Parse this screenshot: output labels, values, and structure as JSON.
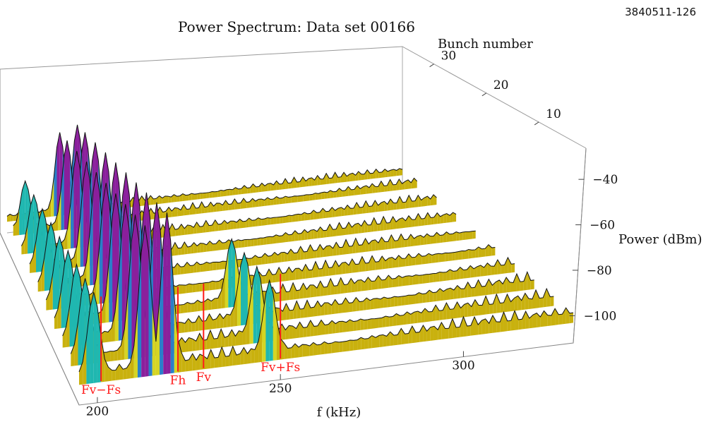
{
  "figure_id": "3840511-126",
  "chart_data": {
    "type": "surface",
    "title": "Power Spectrum: Data set 00166",
    "xlabel": "f (kHz)",
    "ylabel": "Bunch number",
    "zlabel": "Power (dBm)",
    "xlim": [
      195,
      330
    ],
    "ylim": [
      1,
      36
    ],
    "zlim": [
      -112,
      -28
    ],
    "x_ticks": [
      200,
      250,
      300
    ],
    "y_ticks": [
      10,
      20,
      30
    ],
    "z_ticks": [
      -40,
      -60,
      -80,
      -100
    ],
    "bunch_rows": [
      1,
      5,
      9,
      13,
      17,
      21,
      25,
      29,
      33,
      36
    ],
    "noise_floor_dBm": -100,
    "peaks": [
      {
        "f": 199,
        "bunch_from": 1,
        "bunch_to": 33,
        "peak_dBm": -68
      },
      {
        "f": 213,
        "bunch_from": 1,
        "bunch_to": 36,
        "peak_dBm": -44
      },
      {
        "f": 219,
        "bunch_from": 1,
        "bunch_to": 36,
        "peak_dBm": -40
      },
      {
        "f": 247,
        "bunch_from": 1,
        "bunch_to": 14,
        "peak_dBm": -72
      }
    ],
    "colorscale": [
      "#c9b10e",
      "#d5d524",
      "#1fb7b0",
      "#2a7fc8",
      "#3a1fa8",
      "#8a1f9c",
      "#d64a28"
    ],
    "annotations": [
      {
        "label": "Fv−Fs",
        "f": 201,
        "color": "#ff1a1a"
      },
      {
        "label": "Fh",
        "f": 222,
        "color": "#ff1a1a"
      },
      {
        "label": "Fv",
        "f": 229,
        "color": "#ff1a1a"
      },
      {
        "label": "Fv+Fs",
        "f": 250,
        "color": "#ff1a1a"
      }
    ]
  }
}
